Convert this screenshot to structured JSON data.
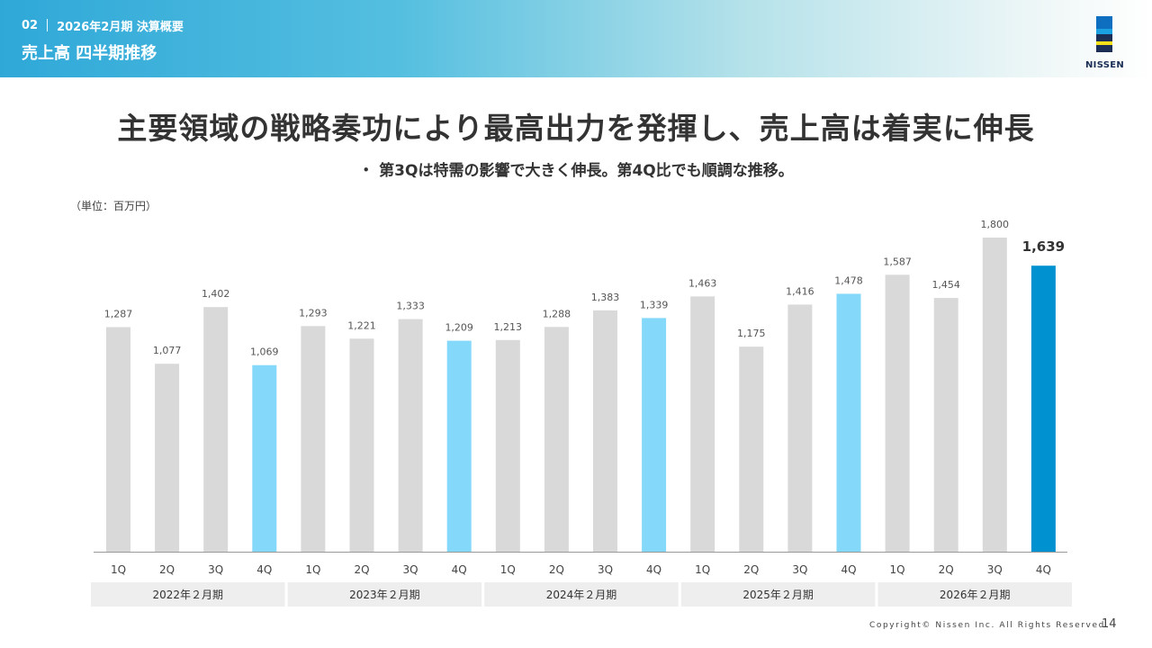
{
  "header": {
    "section_number": "02",
    "section_title": "2026年2月期 決算概要",
    "page_title": "売上高 四半期推移",
    "logo_text": "NISSEN"
  },
  "headline": "主要領域の戦略奏功により最高出力を発揮し、売上高は着実に伸長",
  "subline": "・ 第3Qは特需の影響で大きく伸長。第4Q比でも順調な推移。",
  "unit_label": "（単位：百万円）",
  "chart_data": {
    "type": "bar",
    "categories": [
      "1Q",
      "2Q",
      "3Q",
      "4Q",
      "1Q",
      "2Q",
      "3Q",
      "4Q",
      "1Q",
      "2Q",
      "3Q",
      "4Q",
      "1Q",
      "2Q",
      "3Q",
      "4Q",
      "1Q",
      "2Q",
      "3Q",
      "4Q"
    ],
    "values": [
      1287,
      1077,
      1402,
      1069,
      1293,
      1221,
      1333,
      1209,
      1213,
      1288,
      1383,
      1339,
      1463,
      1175,
      1416,
      1478,
      1587,
      1454,
      1800,
      1639
    ],
    "value_labels": [
      "1,287",
      "1,077",
      "1,402",
      "1,069",
      "1,293",
      "1,221",
      "1,333",
      "1,209",
      "1,213",
      "1,288",
      "1,383",
      "1,339",
      "1,463",
      "1,175",
      "1,416",
      "1,478",
      "1,587",
      "1,454",
      "1,800",
      "1,639"
    ],
    "groups": [
      "2022年２月期",
      "2023年２月期",
      "2024年２月期",
      "2025年２月期",
      "2026年２月期"
    ],
    "ylim": [
      0,
      1800
    ],
    "colors": {
      "default": "#d9d9d9",
      "q4": "#84d8fa",
      "latest": "#0091d0"
    }
  },
  "footer": {
    "copyright": "Copyright© Nissen Inc. All Rights Reserved.",
    "page_number": "14"
  },
  "colors": {
    "logo_bands": [
      "#0e6fc0",
      "#1ba1e2",
      "#1b2e55",
      "#f5e11b",
      "#1b2e55"
    ]
  }
}
